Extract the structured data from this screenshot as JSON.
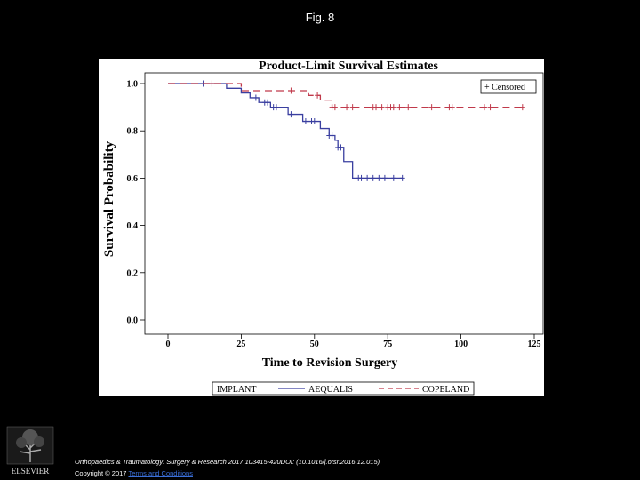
{
  "figure_label": "Fig. 8",
  "caption": "Orthopaedics & Traumatology: Surgery & Research 2017 103415-420DOI: (10.1016/j.otsr.2016.12.015)",
  "copyright_prefix": "Copyright © 2017",
  "terms_link": "Terms and Conditions",
  "logo_text": "ELSEVIER",
  "colors": {
    "aequalis": "#3a3fa0",
    "copeland": "#c0394a",
    "background": "#000000",
    "panel": "#ffffff"
  },
  "chart_data": {
    "type": "line",
    "title": "Product-Limit Survival Estimates",
    "xlabel": "Time to Revision Surgery",
    "ylabel": "Survival Probability",
    "xlim": [
      0,
      125
    ],
    "ylim": [
      0,
      1.0
    ],
    "x_ticks": [
      "0",
      "25",
      "50",
      "75",
      "100",
      "125"
    ],
    "y_ticks": [
      "0.0",
      "0.2",
      "0.4",
      "0.6",
      "0.8",
      "1.0"
    ],
    "grid": false,
    "censored_legend": "+ Censored",
    "legend": {
      "label": "IMPLANT",
      "position": "bottom"
    },
    "series": [
      {
        "name": "AEQUALIS",
        "color": "#3a3fa0",
        "dash": false,
        "steps": [
          [
            0,
            1.0
          ],
          [
            20,
            0.98
          ],
          [
            25,
            0.96
          ],
          [
            28,
            0.94
          ],
          [
            31,
            0.92
          ],
          [
            35,
            0.9
          ],
          [
            41,
            0.87
          ],
          [
            46,
            0.84
          ],
          [
            52,
            0.81
          ],
          [
            55,
            0.78
          ],
          [
            57,
            0.76
          ],
          [
            58,
            0.73
          ],
          [
            60,
            0.67
          ],
          [
            63,
            0.6
          ],
          [
            80,
            0.6
          ]
        ],
        "censored": [
          12,
          30,
          33,
          34,
          36,
          37,
          42,
          47,
          49,
          50,
          55,
          56,
          58,
          59,
          65,
          66,
          68,
          70,
          72,
          74,
          77,
          80
        ]
      },
      {
        "name": "COPELAND",
        "color": "#c0394a",
        "dash": true,
        "steps": [
          [
            0,
            1.0
          ],
          [
            25,
            0.97
          ],
          [
            48,
            0.95
          ],
          [
            52,
            0.93
          ],
          [
            56,
            0.9
          ],
          [
            121,
            0.9
          ]
        ],
        "censored": [
          15,
          42,
          51,
          56,
          57,
          61,
          63,
          70,
          71,
          73,
          75,
          76,
          77,
          79,
          82,
          90,
          96,
          97,
          108,
          110,
          121
        ]
      }
    ]
  }
}
